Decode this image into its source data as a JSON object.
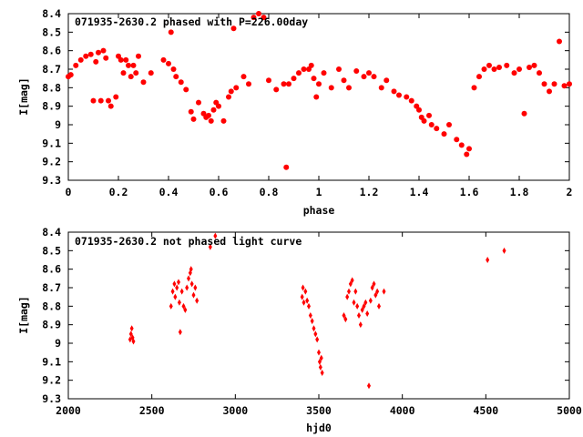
{
  "colors": {
    "points": "#ff0000",
    "axis": "#000000",
    "background": "#ffffff"
  },
  "chart_data": [
    {
      "type": "scatter",
      "title": "071935-2630.2 phased with P=226.00day",
      "xlabel": "phase",
      "ylabel": "I[mag]",
      "xlim": [
        0,
        2
      ],
      "ylim": [
        8.4,
        9.3
      ],
      "y_inverted": true,
      "grid": false,
      "legend": "none",
      "marker": "filled-circle",
      "xticks": [
        0,
        0.2,
        0.4,
        0.6,
        0.8,
        1,
        1.2,
        1.4,
        1.6,
        1.8,
        2
      ],
      "xtick_labels": [
        "0",
        "0.2",
        "0.4",
        "0.6",
        "0.8",
        "1",
        "1.2",
        "1.4",
        "1.6",
        "1.8",
        "2"
      ],
      "yticks": [
        8.4,
        8.5,
        8.6,
        8.7,
        8.8,
        8.9,
        9,
        9.1,
        9.2,
        9.3
      ],
      "ytick_labels": [
        "8.4",
        "8.5",
        "8.6",
        "8.7",
        "8.8",
        "8.9",
        "9",
        "9.1",
        "9.2",
        "9.3"
      ],
      "x": [
        0.0,
        0.01,
        0.03,
        0.05,
        0.07,
        0.09,
        0.1,
        0.11,
        0.12,
        0.13,
        0.14,
        0.15,
        0.16,
        0.17,
        0.19,
        0.2,
        0.21,
        0.22,
        0.23,
        0.24,
        0.25,
        0.26,
        0.27,
        0.28,
        0.3,
        0.33,
        0.38,
        0.4,
        0.41,
        0.42,
        0.43,
        0.45,
        0.47,
        0.49,
        0.5,
        0.52,
        0.54,
        0.55,
        0.56,
        0.57,
        0.58,
        0.59,
        0.6,
        0.62,
        0.64,
        0.65,
        0.66,
        0.67,
        0.7,
        0.72,
        0.74,
        0.76,
        0.78,
        0.8,
        0.83,
        0.86,
        0.87,
        0.88,
        0.9,
        0.92,
        0.94,
        0.96,
        0.97,
        0.98,
        0.99,
        1.0,
        1.02,
        1.05,
        1.08,
        1.1,
        1.12,
        1.15,
        1.18,
        1.2,
        1.22,
        1.25,
        1.27,
        1.3,
        1.32,
        1.35,
        1.37,
        1.39,
        1.4,
        1.41,
        1.42,
        1.44,
        1.45,
        1.47,
        1.5,
        1.52,
        1.55,
        1.57,
        1.59,
        1.6,
        1.62,
        1.64,
        1.66,
        1.68,
        1.7,
        1.72,
        1.75,
        1.78,
        1.8,
        1.82,
        1.84,
        1.86,
        1.88,
        1.9,
        1.92,
        1.94,
        1.96,
        1.98,
        2.0
      ],
      "y": [
        8.74,
        8.73,
        8.68,
        8.65,
        8.63,
        8.62,
        8.87,
        8.66,
        8.61,
        8.87,
        8.6,
        8.64,
        8.87,
        8.9,
        8.85,
        8.63,
        8.65,
        8.72,
        8.65,
        8.68,
        8.74,
        8.68,
        8.72,
        8.63,
        8.77,
        8.72,
        8.65,
        8.67,
        8.5,
        8.7,
        8.74,
        8.77,
        8.81,
        8.93,
        8.97,
        8.88,
        8.94,
        8.96,
        8.95,
        8.98,
        8.92,
        8.88,
        8.9,
        8.98,
        8.85,
        8.82,
        8.48,
        8.8,
        8.74,
        8.78,
        8.42,
        8.4,
        8.42,
        8.76,
        8.81,
        8.78,
        9.23,
        8.78,
        8.75,
        8.72,
        8.7,
        8.7,
        8.68,
        8.75,
        8.85,
        8.78,
        8.72,
        8.8,
        8.7,
        8.76,
        8.8,
        8.71,
        8.74,
        8.72,
        8.74,
        8.8,
        8.76,
        8.82,
        8.84,
        8.85,
        8.87,
        8.9,
        8.92,
        8.96,
        8.98,
        8.95,
        9.0,
        9.02,
        9.05,
        9.0,
        9.08,
        9.11,
        9.16,
        9.13,
        8.8,
        8.74,
        8.7,
        8.68,
        8.7,
        8.69,
        8.68,
        8.72,
        8.7,
        8.94,
        8.69,
        8.68,
        8.72,
        8.78,
        8.82,
        8.78,
        8.55,
        8.79,
        8.78
      ]
    },
    {
      "type": "scatter",
      "title": "071935-2630.2 not phased light curve",
      "xlabel": "hjd0",
      "ylabel": "I[mag]",
      "xlim": [
        2000,
        5000
      ],
      "ylim": [
        8.4,
        9.3
      ],
      "y_inverted": true,
      "grid": false,
      "legend": "none",
      "marker": "diamond",
      "xticks": [
        2000,
        2500,
        3000,
        3500,
        4000,
        4500,
        5000
      ],
      "xtick_labels": [
        "2000",
        "2500",
        "3000",
        "3500",
        "4000",
        "4500",
        "5000"
      ],
      "yticks": [
        8.4,
        8.5,
        8.6,
        8.7,
        8.8,
        8.9,
        9,
        9.1,
        9.2,
        9.3
      ],
      "ytick_labels": [
        "8.4",
        "8.5",
        "8.6",
        "8.7",
        "8.8",
        "8.9",
        "9",
        "9.1",
        "9.2",
        "9.3"
      ],
      "x": [
        2370,
        2375,
        2380,
        2385,
        2390,
        2615,
        2625,
        2635,
        2640,
        2650,
        2660,
        2665,
        2670,
        2680,
        2690,
        2700,
        2710,
        2720,
        2730,
        2735,
        2740,
        2750,
        2760,
        2770,
        2850,
        2880,
        3400,
        3405,
        3410,
        3420,
        3430,
        3440,
        3450,
        3460,
        3470,
        3480,
        3490,
        3500,
        3505,
        3510,
        3515,
        3520,
        3650,
        3660,
        3670,
        3680,
        3690,
        3700,
        3710,
        3720,
        3730,
        3740,
        3750,
        3760,
        3770,
        3780,
        3790,
        3800,
        3810,
        3820,
        3830,
        3840,
        3850,
        3860,
        3890,
        4510,
        4610
      ],
      "y": [
        8.98,
        8.95,
        8.92,
        8.97,
        8.99,
        8.8,
        8.72,
        8.68,
        8.75,
        8.7,
        8.67,
        8.78,
        8.94,
        8.72,
        8.8,
        8.82,
        8.7,
        8.65,
        8.62,
        8.6,
        8.68,
        8.74,
        8.7,
        8.77,
        8.48,
        8.42,
        8.75,
        8.7,
        8.78,
        8.72,
        8.77,
        8.8,
        8.85,
        8.88,
        8.92,
        8.95,
        8.98,
        9.05,
        9.1,
        9.13,
        9.08,
        9.16,
        8.85,
        8.87,
        8.75,
        8.72,
        8.68,
        8.66,
        8.78,
        8.72,
        8.8,
        8.85,
        8.9,
        8.82,
        8.8,
        8.78,
        8.84,
        9.23,
        8.77,
        8.7,
        8.68,
        8.74,
        8.72,
        8.8,
        8.72,
        8.55,
        8.5
      ]
    }
  ]
}
